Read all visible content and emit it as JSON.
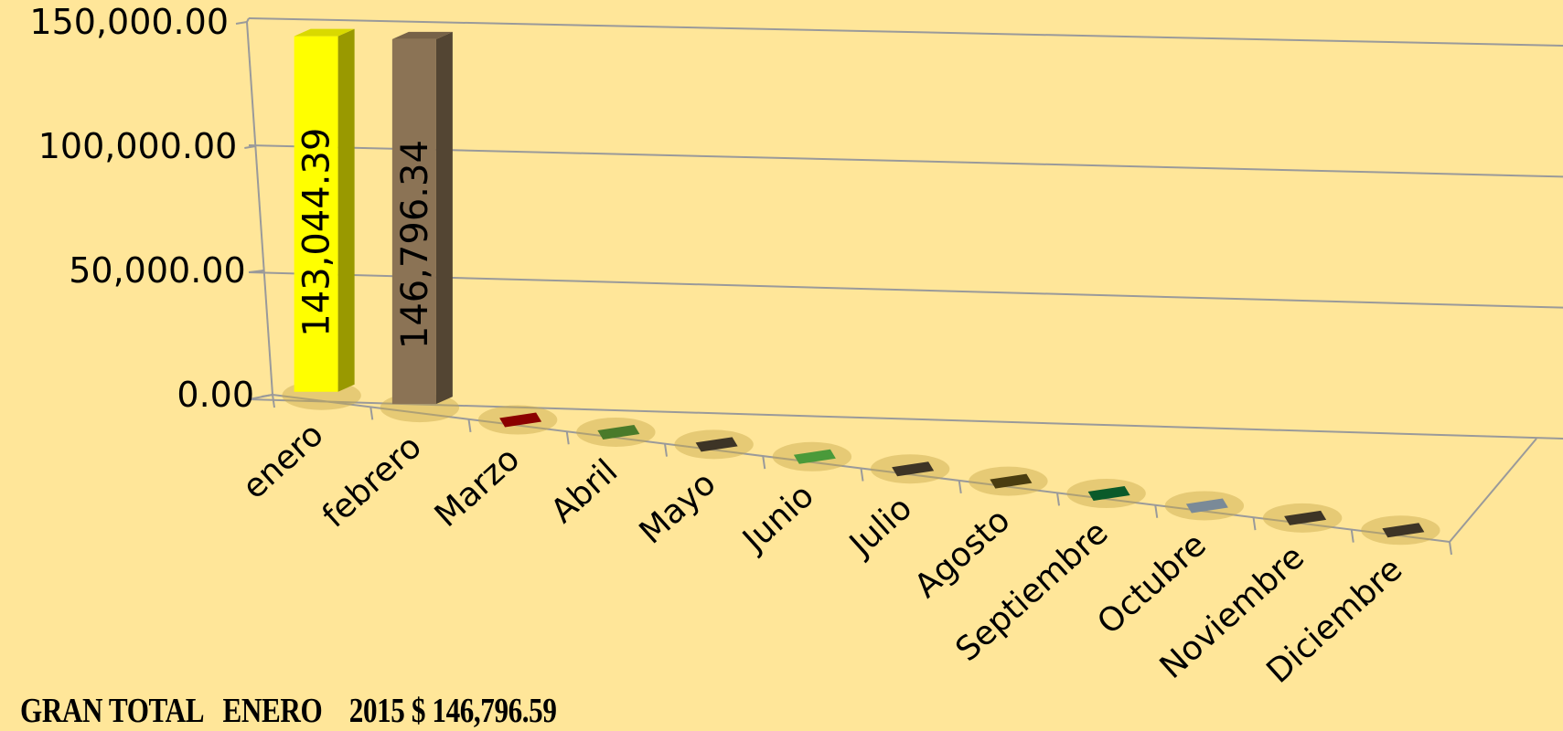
{
  "footer": {
    "text": "GRAN TOTAL   ENERO    2015 $ 146,796.59"
  },
  "chart_data": {
    "type": "bar",
    "title": "",
    "xlabel": "",
    "ylabel": "",
    "ylim": [
      0,
      150000
    ],
    "yticks": [
      "0.00",
      "50,000.00",
      "100,000.00",
      "150,000.00"
    ],
    "categories": [
      "enero",
      "febrero",
      "Marzo",
      "Abril",
      "Mayo",
      "Junio",
      "Julio",
      "Agosto",
      "Septiembre",
      "Octubre",
      "Noviembre",
      "Diciembre"
    ],
    "values": [
      143044.39,
      146796.34,
      0,
      0,
      0,
      0,
      0,
      0,
      0,
      0,
      0,
      0
    ],
    "data_labels": [
      "143,044.39",
      "146,796.34",
      "",
      "",
      "",
      "",
      "",
      "",
      "",
      "",
      "",
      ""
    ],
    "colors": [
      "#ffff00",
      "#8b7355",
      "#8b0000",
      "#4a7a2a",
      "#3d3426",
      "#4a9a3a",
      "#3d3426",
      "#4a3d10",
      "#0a5a2a",
      "#7a8a98",
      "#3d3426",
      "#3d3426"
    ],
    "grid": true,
    "legend": "none",
    "style": "3d-column"
  }
}
